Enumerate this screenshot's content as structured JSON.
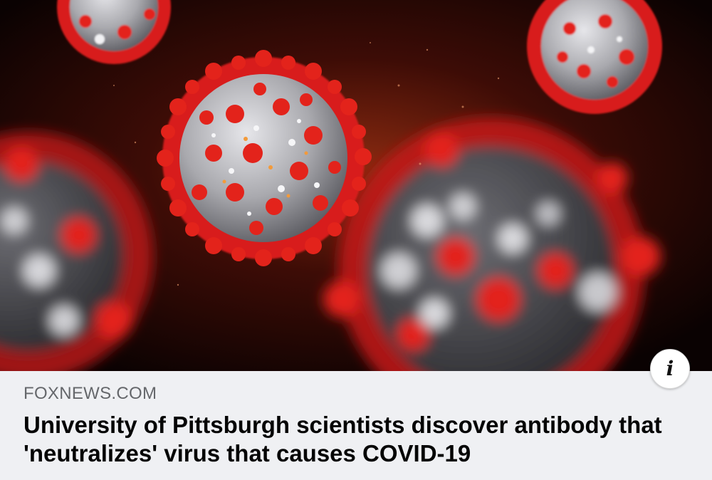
{
  "link_preview": {
    "image": {
      "subject": "coronavirus-particles",
      "colors": {
        "background": "#0a0202",
        "glow": "#8a2a10",
        "spike": "#e3231b",
        "body": "#b9b9bd"
      }
    },
    "info_icon": {
      "glyph": "i",
      "icon_name": "info-icon"
    },
    "source": "FOXNEWS.COM",
    "headline_line1": "University of Pittsburgh scientists discover antibody that",
    "headline_line2": "'neutralizes' virus that causes COVID-19",
    "colors": {
      "meta_background": "#eff0f3",
      "source_text": "#65676b",
      "headline_text": "#050505"
    }
  }
}
